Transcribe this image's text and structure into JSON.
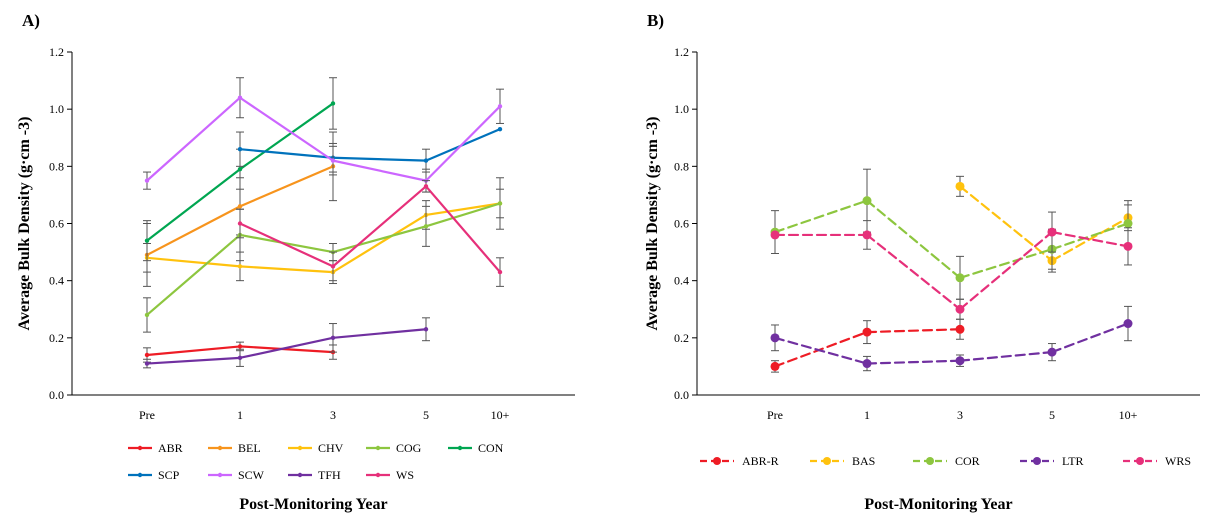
{
  "chart_data": [
    {
      "panel_label": "A)",
      "type": "line",
      "categories": [
        "Pre",
        "1",
        "3",
        "5",
        "10+"
      ],
      "xlabel": "Post-Monitoring Year",
      "ylabel": "Average Bulk Density (g·cm -3)",
      "ylim": [
        0,
        1.2
      ],
      "yticks": [
        "0.0",
        "0.2",
        "0.4",
        "0.6",
        "0.8",
        "1.0",
        "1.2"
      ],
      "line_style": "solid",
      "marker": "small",
      "grid": false,
      "legend_position": "bottom",
      "series": [
        {
          "name": "ABR",
          "color": "#ee1c25",
          "values": [
            0.14,
            0.17,
            0.15,
            null,
            null
          ],
          "errors": [
            0.025,
            0.015,
            0.025,
            null,
            null
          ]
        },
        {
          "name": "BEL",
          "color": "#f7941d",
          "values": [
            0.49,
            0.66,
            0.8,
            null,
            null
          ],
          "errors": [
            0.11,
            0.1,
            0.12,
            null,
            null
          ]
        },
        {
          "name": "CHV",
          "color": "#ffc20e",
          "values": [
            0.48,
            0.45,
            0.43,
            0.63,
            0.67
          ],
          "errors": [
            0.05,
            0.05,
            0.04,
            0.05,
            0.05
          ]
        },
        {
          "name": "COG",
          "color": "#8dc63f",
          "values": [
            0.28,
            0.56,
            0.5,
            0.59,
            0.67
          ],
          "errors": [
            0.06,
            0.09,
            0.03,
            0.07,
            0.09
          ]
        },
        {
          "name": "CON",
          "color": "#00a651",
          "values": [
            0.54,
            0.79,
            1.02,
            null,
            null
          ],
          "errors": [
            0.07,
            0.07,
            0.09,
            null,
            null
          ]
        },
        {
          "name": "SCP",
          "color": "#0072bc",
          "values": [
            null,
            0.86,
            0.83,
            0.82,
            0.93
          ],
          "errors": [
            null,
            0.06,
            0.05,
            0.04,
            0.0
          ]
        },
        {
          "name": "SCW",
          "color": "#cc66ff",
          "values": [
            0.75,
            1.04,
            0.82,
            0.75,
            1.01
          ],
          "errors": [
            0.03,
            0.07,
            0.05,
            0.04,
            0.06
          ]
        },
        {
          "name": "TFH",
          "color": "#7030a0",
          "values": [
            0.11,
            0.13,
            0.2,
            0.23,
            null
          ],
          "errors": [
            0.015,
            0.03,
            0.05,
            0.04,
            null
          ]
        },
        {
          "name": "WS",
          "color": "#e6307a",
          "values": [
            null,
            0.6,
            0.45,
            0.73,
            0.43
          ],
          "errors": [
            null,
            0.05,
            0.05,
            0.02,
            0.05
          ]
        }
      ],
      "legend_rows": [
        [
          "ABR",
          "BEL",
          "CHV",
          "COG",
          "CON"
        ],
        [
          "SCP",
          "SCW",
          "TFH",
          "WS"
        ]
      ]
    },
    {
      "panel_label": "B)",
      "type": "line",
      "categories": [
        "Pre",
        "1",
        "3",
        "5",
        "10+"
      ],
      "xlabel": "Post-Monitoring Year",
      "ylabel": "Average Bulk Density (g·cm -3)",
      "ylim": [
        0,
        1.2
      ],
      "yticks": [
        "0.0",
        "0.2",
        "0.4",
        "0.6",
        "0.8",
        "1.0",
        "1.2"
      ],
      "line_style": "dashed",
      "marker": "circle",
      "grid": false,
      "legend_position": "bottom",
      "series": [
        {
          "name": "ABR-R",
          "color": "#ee1c25",
          "values": [
            0.1,
            0.22,
            0.23,
            null,
            null
          ],
          "errors": [
            0.02,
            0.04,
            0.035,
            null,
            null
          ]
        },
        {
          "name": "BAS",
          "color": "#ffc20e",
          "values": [
            null,
            null,
            0.73,
            0.47,
            0.62
          ],
          "errors": [
            null,
            null,
            0.035,
            0.04,
            0.045
          ]
        },
        {
          "name": "COR",
          "color": "#8dc63f",
          "values": [
            0.57,
            0.68,
            0.41,
            0.51,
            0.6
          ],
          "errors": [
            0.075,
            0.11,
            0.075,
            0.07,
            0.08
          ]
        },
        {
          "name": "LTR",
          "color": "#7030a0",
          "values": [
            0.2,
            0.11,
            0.12,
            0.15,
            0.25
          ],
          "errors": [
            0.045,
            0.025,
            0.02,
            0.03,
            0.06
          ]
        },
        {
          "name": "WRS",
          "color": "#e6307a",
          "values": [
            0.56,
            0.56,
            0.3,
            0.57,
            0.52
          ],
          "errors": [
            0.0,
            0.05,
            0.035,
            0.07,
            0.065
          ]
        }
      ],
      "legend_rows": [
        [
          "ABR-R",
          "BAS",
          "COR",
          "LTR",
          "WRS"
        ]
      ]
    }
  ]
}
